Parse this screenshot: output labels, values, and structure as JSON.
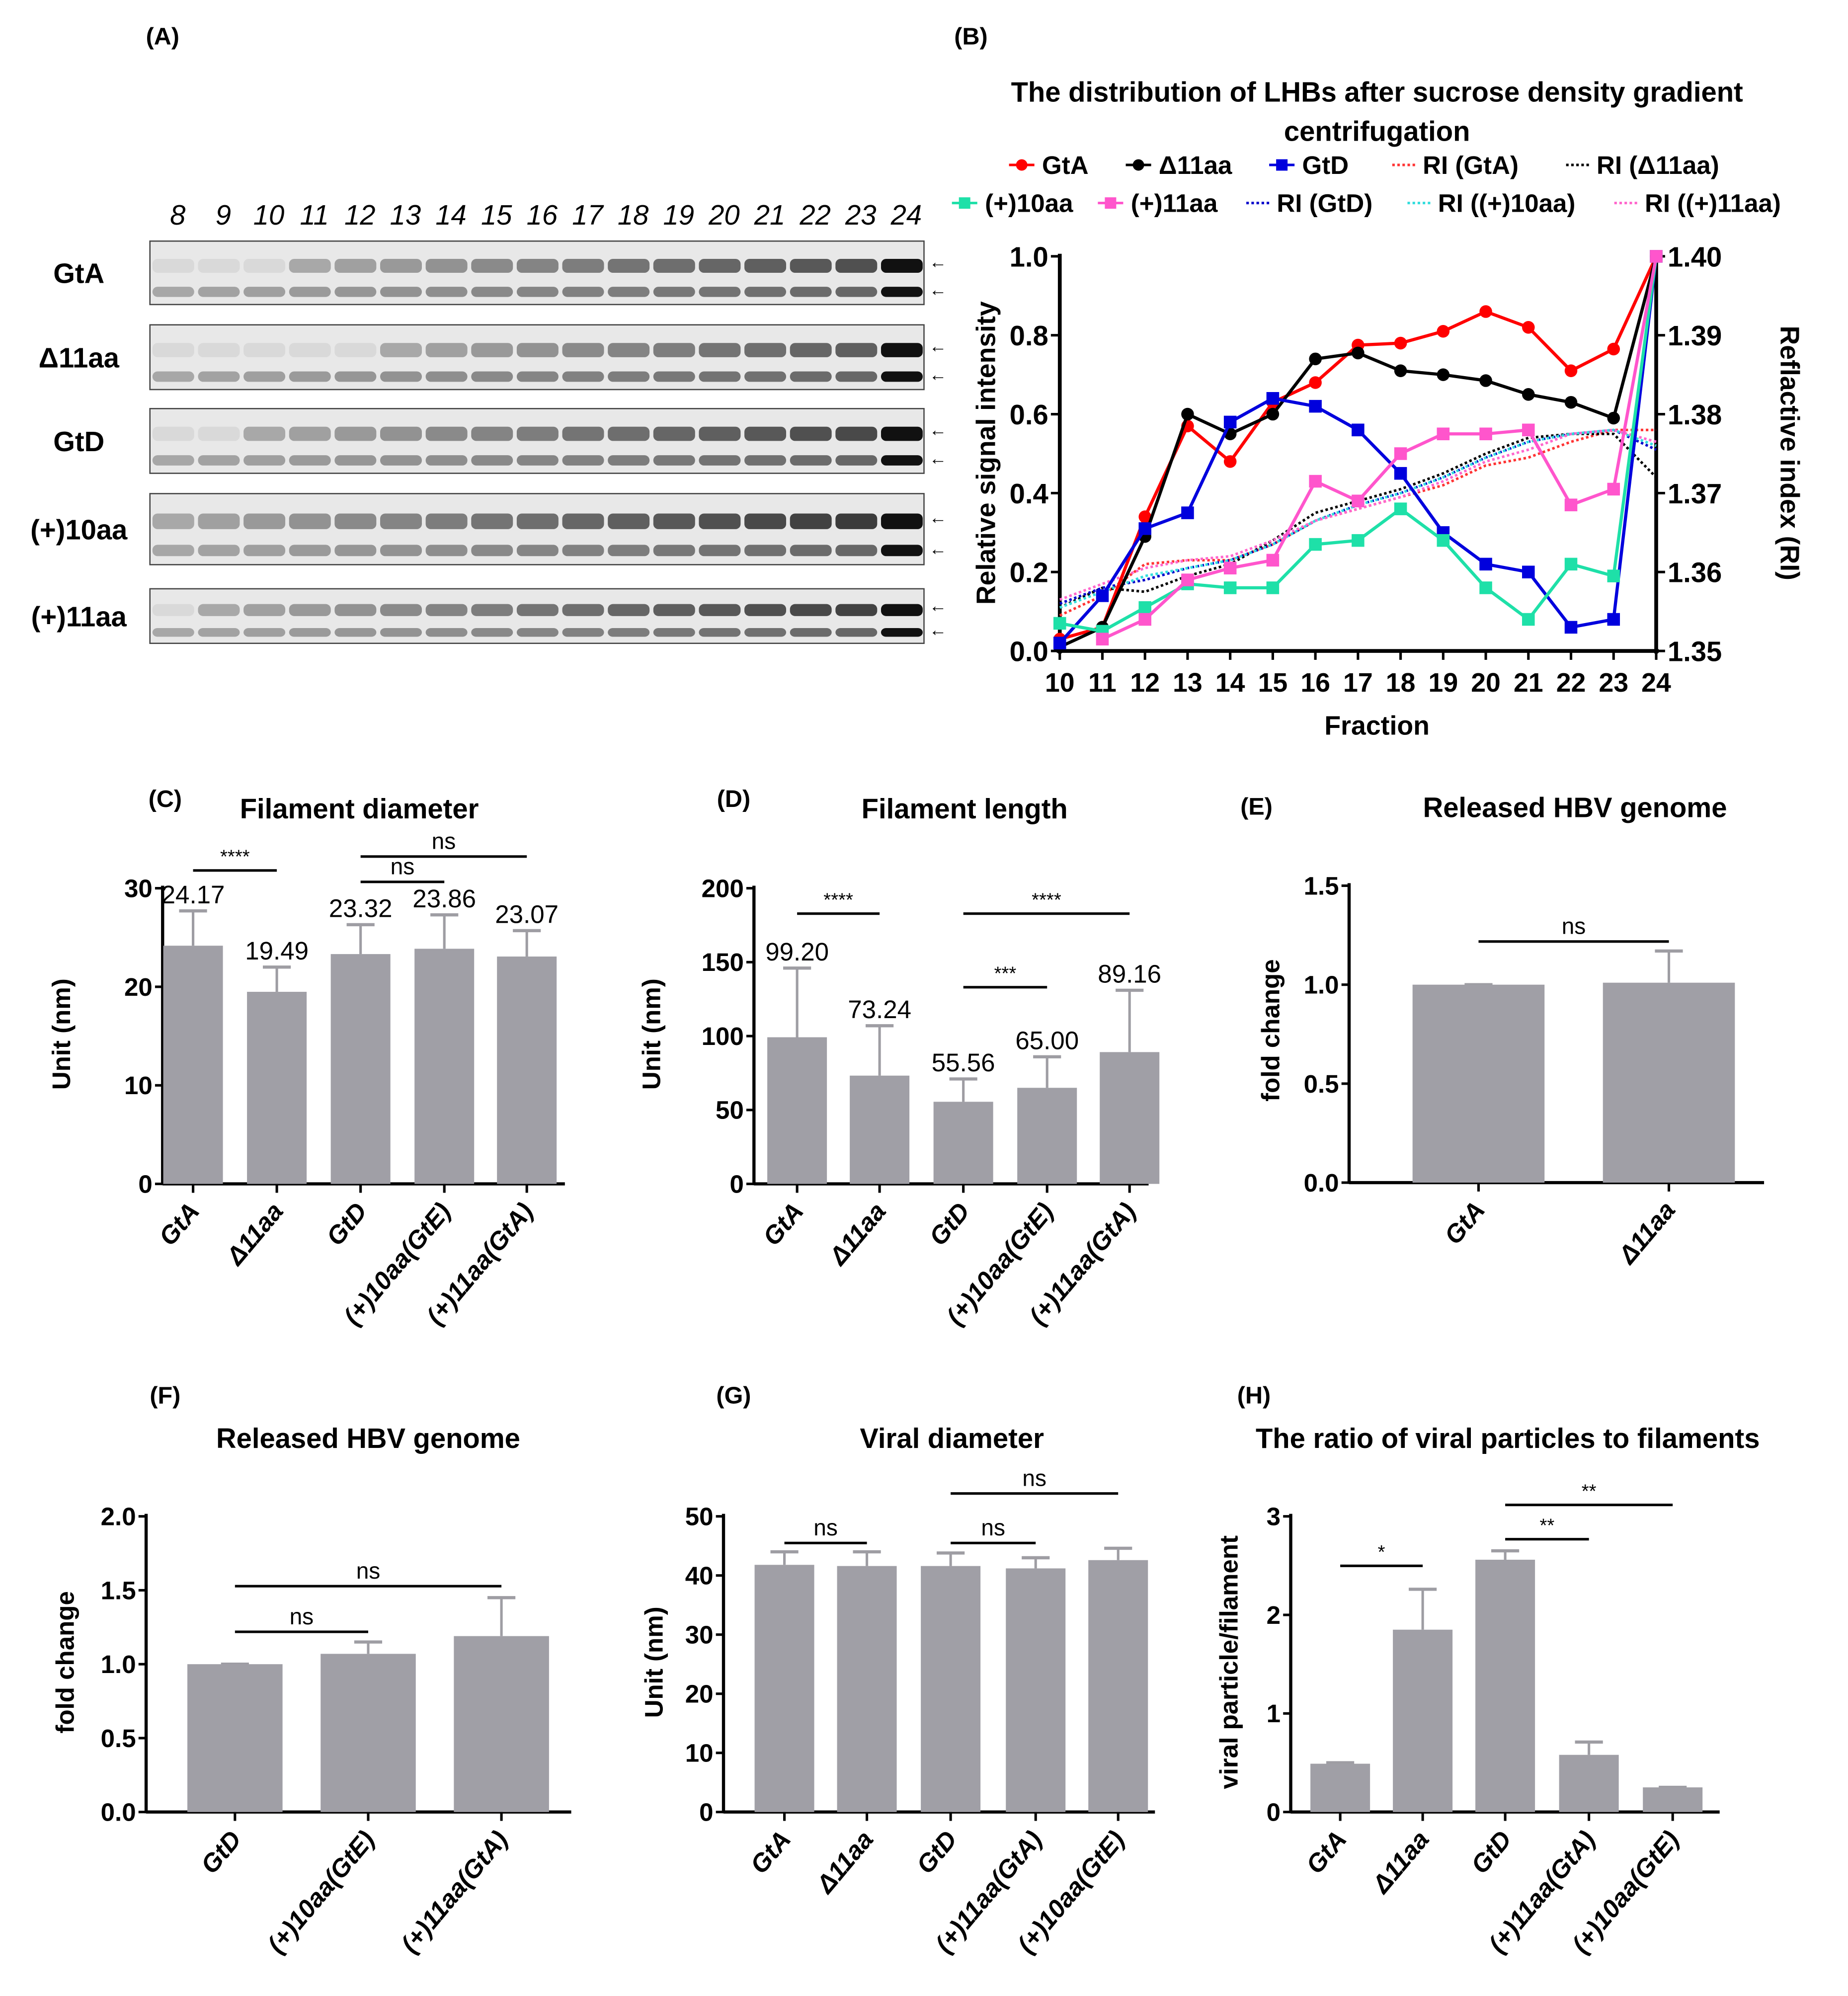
{
  "panel_labels": [
    "(A)",
    "(B)",
    "(C)",
    "(D)",
    "(E)",
    "(F)",
    "(G)",
    "(H)"
  ],
  "blot": {
    "lanes": [
      "8",
      "9",
      "10",
      "11",
      "12",
      "13",
      "14",
      "15",
      "16",
      "17",
      "18",
      "19",
      "20",
      "21",
      "22",
      "23",
      "24"
    ],
    "rows": [
      "GtA",
      "Δ11aa",
      "GtD",
      "(+)10aa",
      "(+)11aa"
    ],
    "arrow": "←"
  },
  "chart_data": [
    {
      "id": "B",
      "type": "line",
      "title": [
        "The distribution of LHBs after sucrose density gradient",
        "centrifugation"
      ],
      "xlabel": "Fraction",
      "ylabel": "Relative signal intensity",
      "y2label": "Reflactive index (RI)",
      "x": [
        10,
        11,
        12,
        13,
        14,
        15,
        16,
        17,
        18,
        19,
        20,
        21,
        22,
        23,
        24
      ],
      "ylim": [
        0,
        1.0
      ],
      "yticks": [
        "0.0",
        "0.2",
        "0.4",
        "0.6",
        "0.8",
        "1.0"
      ],
      "y2lim": [
        1.35,
        1.4
      ],
      "y2ticks": [
        "1.35",
        "1.36",
        "1.37",
        "1.38",
        "1.39",
        "1.40"
      ],
      "series": [
        {
          "name": "GtA",
          "color": "#ff0000",
          "marker": "circle",
          "values": [
            0.03,
            0.06,
            0.34,
            0.57,
            0.48,
            0.63,
            0.68,
            0.775,
            0.78,
            0.81,
            0.86,
            0.82,
            0.71,
            0.765,
            1.0
          ]
        },
        {
          "name": "Δ11aa",
          "color": "#000000",
          "marker": "circle",
          "values": [
            0.01,
            0.06,
            0.29,
            0.6,
            0.55,
            0.6,
            0.74,
            0.755,
            0.71,
            0.7,
            0.685,
            0.65,
            0.63,
            0.59,
            1.0
          ]
        },
        {
          "name": "GtD",
          "color": "#0000dd",
          "marker": "square",
          "values": [
            0.02,
            0.14,
            0.31,
            0.35,
            0.58,
            0.64,
            0.62,
            0.56,
            0.45,
            0.3,
            0.22,
            0.2,
            0.06,
            0.08,
            1.0
          ]
        },
        {
          "name": "(+)10aa",
          "color": "#1ee0a8",
          "marker": "square",
          "values": [
            0.07,
            0.05,
            0.11,
            0.17,
            0.16,
            0.16,
            0.27,
            0.28,
            0.36,
            0.28,
            0.16,
            0.08,
            0.22,
            0.19,
            1.0
          ]
        },
        {
          "name": "(+)11aa",
          "color": "#ff55cc",
          "marker": "square",
          "values": [
            null,
            0.03,
            0.08,
            0.18,
            0.21,
            0.23,
            0.43,
            0.38,
            0.5,
            0.55,
            0.55,
            0.56,
            0.37,
            0.41,
            1.0
          ]
        }
      ],
      "ri_series": [
        {
          "name": "RI (GtA)",
          "color": "#ff3333",
          "values": [
            1.3545,
            1.357,
            1.361,
            1.3615,
            1.3615,
            1.3635,
            1.3665,
            1.368,
            1.3695,
            1.371,
            1.3735,
            1.3745,
            1.3765,
            1.378,
            1.378
          ]
        },
        {
          "name": "RI (Δ11aa)",
          "color": "#000000",
          "values": [
            1.3555,
            1.358,
            1.3575,
            1.3595,
            1.361,
            1.364,
            1.3675,
            1.369,
            1.3705,
            1.3725,
            1.375,
            1.377,
            1.3775,
            1.3775,
            1.372
          ]
        },
        {
          "name": "RI (GtD)",
          "color": "#0000cc",
          "values": [
            1.356,
            1.358,
            1.359,
            1.3605,
            1.3615,
            1.3635,
            1.3665,
            1.3685,
            1.37,
            1.372,
            1.3745,
            1.3765,
            1.3775,
            1.378,
            1.3755
          ]
        },
        {
          "name": "RI ((+)10aa)",
          "color": "#33dddd",
          "values": [
            1.3555,
            1.3575,
            1.3595,
            1.3605,
            1.3615,
            1.3635,
            1.3665,
            1.3685,
            1.37,
            1.372,
            1.3745,
            1.3765,
            1.3775,
            1.378,
            1.376
          ]
        },
        {
          "name": "RI ((+)11aa)",
          "color": "#ff66cc",
          "values": [
            1.3565,
            1.3585,
            1.3605,
            1.3615,
            1.362,
            1.364,
            1.3665,
            1.368,
            1.3695,
            1.3715,
            1.374,
            1.3755,
            1.3775,
            1.378,
            1.3765
          ]
        }
      ]
    },
    {
      "id": "C",
      "type": "bar",
      "title": "Filament diameter",
      "ylabel": "Unit (nm)",
      "categories": [
        "GtA",
        "Δ11aa",
        "GtD",
        "(+)10aa(GtE)",
        "(+)11aa(GtA)"
      ],
      "values": [
        24.17,
        19.49,
        23.32,
        23.86,
        23.07
      ],
      "error_top": [
        27.7,
        22.0,
        26.3,
        27.3,
        25.7
      ],
      "data_labels": [
        "24.17",
        "19.49",
        "23.32",
        "23.86",
        "23.07"
      ],
      "ylim": [
        0,
        30
      ],
      "yticks": [
        "0",
        "10",
        "20",
        "30"
      ],
      "significance": [
        {
          "from": 0,
          "to": 1,
          "label": "****"
        },
        {
          "from": 2,
          "to": 3,
          "label": "ns"
        },
        {
          "from": 2,
          "to": 4,
          "label": "ns"
        }
      ]
    },
    {
      "id": "D",
      "type": "bar",
      "title": "Filament length",
      "ylabel": "Unit (nm)",
      "categories": [
        "GtA",
        "Δ11aa",
        "GtD",
        "(+)10aa(GtE)",
        "(+)11aa(GtA)"
      ],
      "values": [
        99.2,
        73.24,
        55.56,
        65.0,
        89.16
      ],
      "error_top": [
        146,
        107,
        71,
        86,
        131
      ],
      "data_labels": [
        "99.20",
        "73.24",
        "55.56",
        "65.00",
        "89.16"
      ],
      "ylim": [
        0,
        200
      ],
      "yticks": [
        "0",
        "50",
        "100",
        "150",
        "200"
      ],
      "significance": [
        {
          "from": 0,
          "to": 1,
          "label": "****"
        },
        {
          "from": 2,
          "to": 3,
          "label": "***"
        },
        {
          "from": 2,
          "to": 4,
          "label": "****"
        }
      ]
    },
    {
      "id": "E",
      "type": "bar",
      "title": "Released HBV genome",
      "ylabel": "fold change",
      "categories": [
        "GtA",
        "Δ11aa"
      ],
      "values": [
        1.0,
        1.01
      ],
      "error_top": [
        1.0,
        1.17
      ],
      "ylim": [
        0,
        1.5
      ],
      "yticks": [
        "0.0",
        "0.5",
        "1.0",
        "1.5"
      ],
      "significance": [
        {
          "from": 0,
          "to": 1,
          "label": "ns"
        }
      ]
    },
    {
      "id": "F",
      "type": "bar",
      "title": "Released HBV genome",
      "ylabel": "fold change",
      "categories": [
        "GtD",
        "(+)10aa(GtE)",
        "(+)11aa(GtA)"
      ],
      "values": [
        1.0,
        1.07,
        1.19
      ],
      "error_top": [
        1.0,
        1.15,
        1.45
      ],
      "ylim": [
        0,
        2.0
      ],
      "yticks": [
        "0.0",
        "0.5",
        "1.0",
        "1.5",
        "2.0"
      ],
      "significance": [
        {
          "from": 0,
          "to": 1,
          "label": "ns"
        },
        {
          "from": 0,
          "to": 2,
          "label": "ns"
        }
      ]
    },
    {
      "id": "G",
      "type": "bar",
      "title": "Viral diameter",
      "ylabel": "Unit (nm)",
      "categories": [
        "GtA",
        "Δ11aa",
        "GtD",
        "(+)11aa(GtA)",
        "(+)10aa(GtE)"
      ],
      "values": [
        41.8,
        41.6,
        41.6,
        41.2,
        42.6
      ],
      "error_top": [
        44.0,
        44.0,
        43.8,
        43.0,
        44.6
      ],
      "ylim": [
        0,
        50
      ],
      "yticks": [
        "0",
        "10",
        "20",
        "30",
        "40",
        "50"
      ],
      "significance": [
        {
          "from": 0,
          "to": 1,
          "label": "ns"
        },
        {
          "from": 2,
          "to": 3,
          "label": "ns"
        },
        {
          "from": 2,
          "to": 4,
          "label": "ns"
        }
      ]
    },
    {
      "id": "H",
      "type": "bar",
      "title": "The ratio of viral particles to filaments",
      "ylabel": "viral particle/filament",
      "categories": [
        "GtA",
        "Δ11aa",
        "GtD",
        "(+)11aa(GtA)",
        "(+)10aa(GtE)"
      ],
      "values": [
        0.49,
        1.85,
        2.56,
        0.58,
        0.25
      ],
      "error_top": [
        0.5,
        2.26,
        2.65,
        0.71,
        0.25
      ],
      "ylim": [
        0,
        3
      ],
      "yticks": [
        "0",
        "1",
        "2",
        "3"
      ],
      "significance": [
        {
          "from": 0,
          "to": 1,
          "label": "*"
        },
        {
          "from": 2,
          "to": 3,
          "label": "**"
        },
        {
          "from": 2,
          "to": 4,
          "label": "**"
        }
      ]
    }
  ]
}
